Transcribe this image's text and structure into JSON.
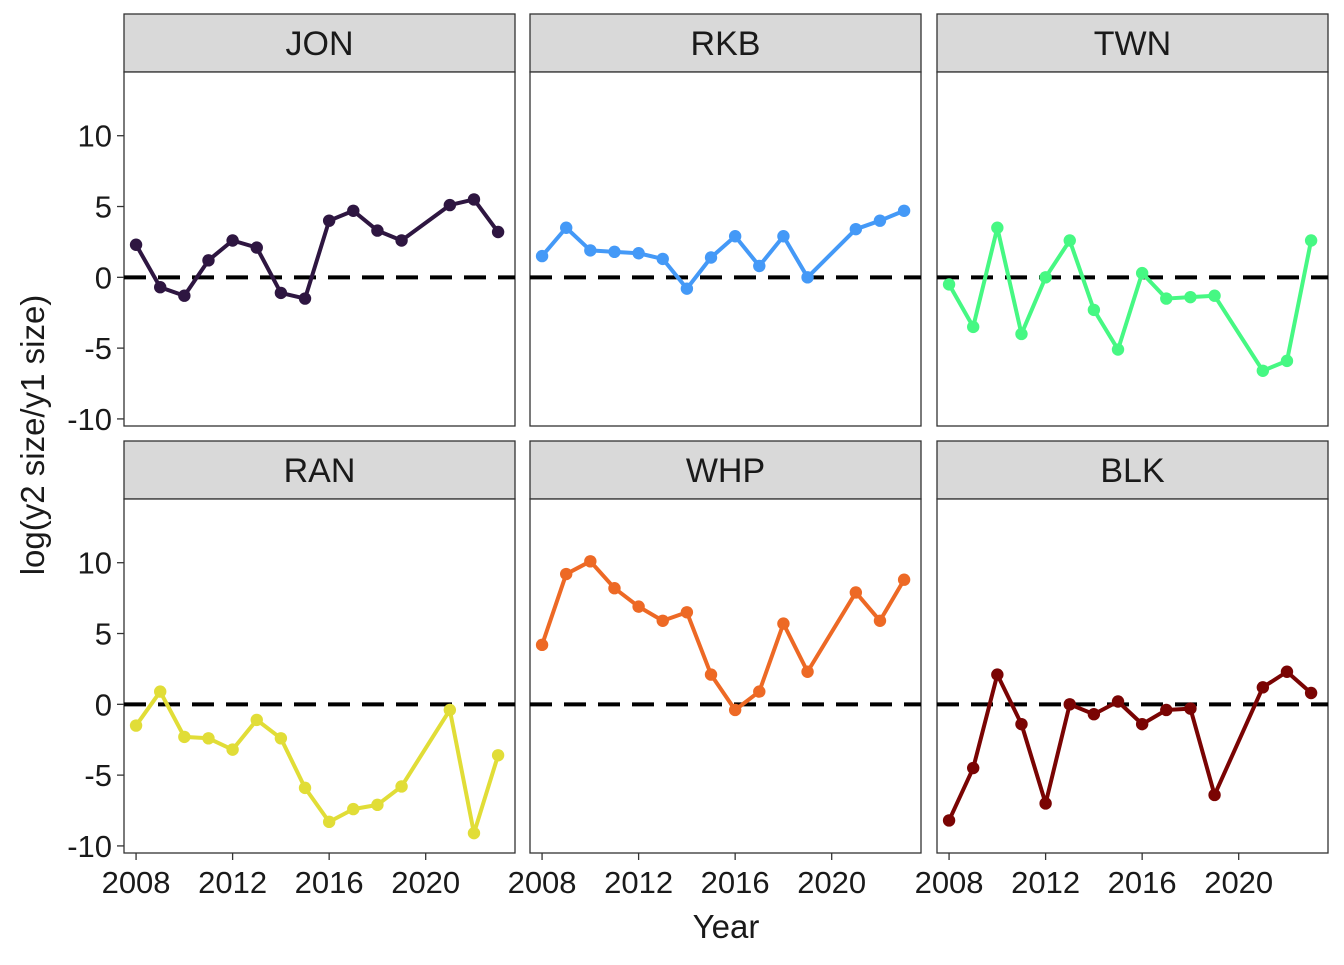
{
  "chart_data": {
    "type": "line",
    "facet_layout": "2 rows x 3 columns, shared axes",
    "xlabel": "Year",
    "ylabel": "log(y2 size/y1 size)",
    "x_ticks": [
      2008,
      2012,
      2016,
      2020
    ],
    "y_ticks": [
      -10,
      -5,
      0,
      5,
      10
    ],
    "xlim": [
      2007.5,
      2023.7
    ],
    "ylim": [
      -10.5,
      14.5
    ],
    "reference_line": {
      "y": 0,
      "style": "dashed",
      "color": "#000000"
    },
    "grid": false,
    "legend": "none",
    "panels": [
      {
        "name": "JON",
        "color": "#2e1641",
        "x": [
          2008,
          2009,
          2010,
          2011,
          2012,
          2013,
          2014,
          2015,
          2016,
          2017,
          2018,
          2019,
          2021,
          2022,
          2023
        ],
        "y": [
          2.3,
          -0.7,
          -1.3,
          1.2,
          2.6,
          2.1,
          -1.1,
          -1.5,
          4.0,
          4.7,
          3.3,
          2.6,
          5.1,
          5.5,
          3.2
        ]
      },
      {
        "name": "RKB",
        "color": "#4499f7",
        "x": [
          2008,
          2009,
          2010,
          2011,
          2012,
          2013,
          2014,
          2015,
          2016,
          2017,
          2018,
          2019,
          2021,
          2022,
          2023
        ],
        "y": [
          1.5,
          3.5,
          1.9,
          1.8,
          1.7,
          1.3,
          -0.8,
          1.4,
          2.9,
          0.8,
          2.9,
          0.0,
          3.4,
          4.0,
          4.7
        ]
      },
      {
        "name": "TWN",
        "color": "#46f883",
        "x": [
          2008,
          2009,
          2010,
          2011,
          2012,
          2013,
          2014,
          2015,
          2016,
          2017,
          2018,
          2019,
          2021,
          2022,
          2023
        ],
        "y": [
          -0.5,
          -3.5,
          3.5,
          -4.0,
          0.0,
          2.6,
          -2.3,
          -5.1,
          0.3,
          -1.5,
          -1.4,
          -1.3,
          -6.6,
          -5.9,
          2.6
        ]
      },
      {
        "name": "RAN",
        "color": "#e1dd37",
        "x": [
          2008,
          2009,
          2010,
          2011,
          2012,
          2013,
          2014,
          2015,
          2016,
          2017,
          2018,
          2019,
          2021,
          2022,
          2023
        ],
        "y": [
          -1.5,
          0.9,
          -2.3,
          -2.4,
          -3.2,
          -1.1,
          -2.4,
          -5.9,
          -8.3,
          -7.4,
          -7.1,
          -5.8,
          -0.4,
          -9.1,
          -3.6
        ]
      },
      {
        "name": "WHP",
        "color": "#ed6925",
        "x": [
          2008,
          2009,
          2010,
          2011,
          2012,
          2013,
          2014,
          2015,
          2016,
          2017,
          2018,
          2019,
          2021,
          2022,
          2023
        ],
        "y": [
          4.2,
          9.2,
          10.1,
          8.2,
          6.9,
          5.9,
          6.5,
          2.1,
          -0.4,
          0.9,
          5.7,
          2.3,
          7.9,
          5.9,
          8.8
        ]
      },
      {
        "name": "BLK",
        "color": "#7a0403",
        "x": [
          2008,
          2009,
          2010,
          2011,
          2012,
          2013,
          2014,
          2015,
          2016,
          2017,
          2018,
          2019,
          2021,
          2022,
          2023
        ],
        "y": [
          -8.2,
          -4.5,
          2.1,
          -1.4,
          -7.0,
          0.0,
          -0.7,
          0.2,
          -1.4,
          -0.4,
          -0.3,
          -6.4,
          1.2,
          2.3,
          0.8
        ]
      }
    ]
  }
}
